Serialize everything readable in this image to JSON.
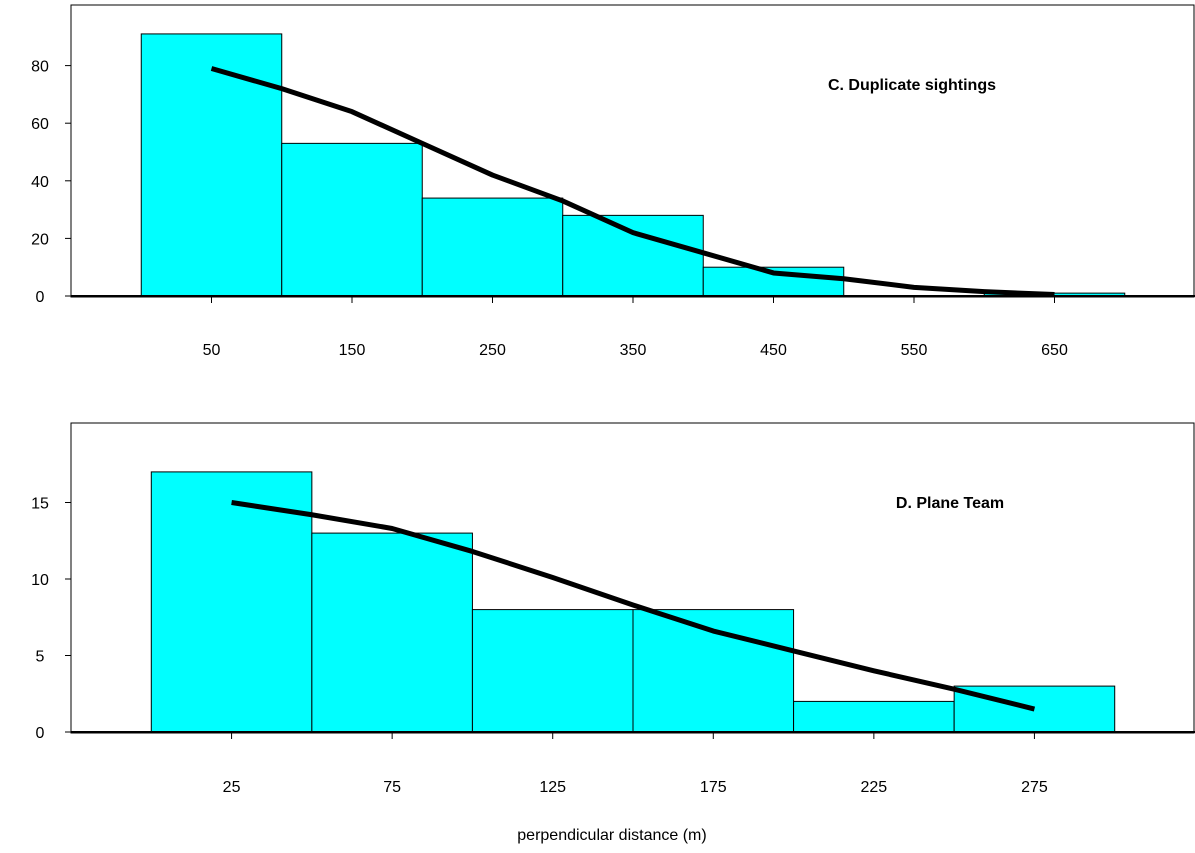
{
  "chart_data": [
    {
      "type": "bar",
      "title": "C.  Duplicate sightings",
      "xlabel": "",
      "ylabel": "",
      "bin_width": 100,
      "bins": [
        {
          "x": 50,
          "value": 91
        },
        {
          "x": 150,
          "value": 53
        },
        {
          "x": 250,
          "value": 34
        },
        {
          "x": 350,
          "value": 28
        },
        {
          "x": 450,
          "value": 10
        },
        {
          "x": 550,
          "value": 0
        },
        {
          "x": 650,
          "value": 1
        }
      ],
      "fit_line": {
        "x": [
          50,
          100,
          150,
          200,
          250,
          300,
          350,
          400,
          450,
          500,
          550,
          600,
          650
        ],
        "y": [
          79,
          72,
          64,
          53,
          42,
          33,
          22,
          15,
          8,
          6,
          3,
          1.5,
          0.5
        ]
      },
      "x_ticks": [
        50,
        150,
        250,
        350,
        450,
        550,
        650
      ],
      "y_ticks": [
        0,
        20,
        40,
        60,
        80
      ],
      "xlim": [
        -50,
        750
      ],
      "ylim": [
        0,
        100
      ]
    },
    {
      "type": "bar",
      "title": "D.  Plane Team",
      "xlabel": "perpendicular distance (m)",
      "ylabel": "",
      "bin_width": 50,
      "bins": [
        {
          "x": 25,
          "value": 17
        },
        {
          "x": 75,
          "value": 13
        },
        {
          "x": 125,
          "value": 8
        },
        {
          "x": 175,
          "value": 8
        },
        {
          "x": 225,
          "value": 2
        },
        {
          "x": 275,
          "value": 3
        }
      ],
      "fit_line": {
        "x": [
          25,
          50,
          75,
          100,
          125,
          150,
          175,
          200,
          225,
          250,
          275
        ],
        "y": [
          15,
          14.2,
          13.3,
          11.8,
          10.1,
          8.3,
          6.6,
          5.3,
          4.0,
          2.8,
          1.5
        ]
      },
      "x_ticks": [
        25,
        75,
        125,
        175,
        225,
        275
      ],
      "y_ticks": [
        0,
        5,
        10,
        15
      ],
      "xlim": [
        -25,
        325
      ],
      "ylim": [
        0,
        20
      ]
    }
  ]
}
